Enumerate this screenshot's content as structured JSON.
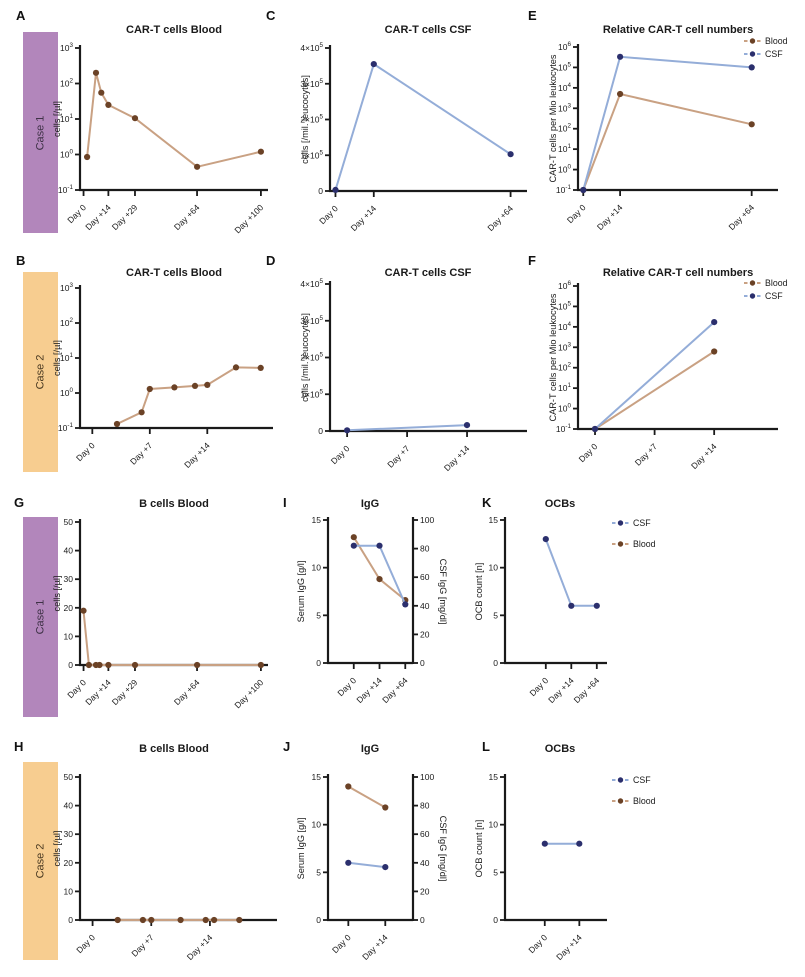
{
  "figure": {
    "rows": [
      {
        "case_label": "Case 1",
        "bar_color": "#b286bb",
        "text_color": "#3f3247"
      },
      {
        "case_label": "Case 2",
        "bar_color": "#f7cd90",
        "text_color": "#4c3b22"
      },
      {
        "case_label": "Case 1",
        "bar_color": "#b286bb",
        "text_color": "#3f3247"
      },
      {
        "case_label": "Case 2",
        "bar_color": "#f7cd90",
        "text_color": "#4c3b22"
      }
    ]
  },
  "colors": {
    "axis": "#1a1a1a",
    "blood": {
      "dot": "#6b4226",
      "line": "#c9a183"
    },
    "csf": {
      "dot": "#2b2f6d",
      "line": "#94add8"
    }
  },
  "chart_data": [
    {
      "letter": "A",
      "title": "CAR-T cells Blood",
      "type": "line",
      "ylabel": "cells [/µl]",
      "yscale": "log",
      "ylim": [
        0.1,
        1000
      ],
      "yticks": [
        {
          "v": 0.1,
          "label": "10^-1"
        },
        {
          "v": 1,
          "label": "10^0"
        },
        {
          "v": 10,
          "label": "10^1"
        },
        {
          "v": 100,
          "label": "10^2"
        },
        {
          "v": 1000,
          "label": "10^3"
        }
      ],
      "xlim": [
        -2,
        104
      ],
      "xticks": [
        {
          "v": 0,
          "label": "Day 0"
        },
        {
          "v": 14,
          "label": "Day +14"
        },
        {
          "v": 29,
          "label": "Day +29"
        },
        {
          "v": 64,
          "label": "Day +64"
        },
        {
          "v": 100,
          "label": "Day +100"
        }
      ],
      "series": [
        {
          "name": "Blood",
          "color": "blood",
          "axis": "y",
          "points": [
            [
              2,
              0.85
            ],
            [
              7,
              200
            ],
            [
              10,
              55
            ],
            [
              14,
              25
            ],
            [
              29,
              10.5
            ],
            [
              64,
              0.45
            ],
            [
              100,
              1.2
            ]
          ]
        }
      ]
    },
    {
      "letter": "C",
      "title": "CAR-T cells CSF",
      "type": "line",
      "ylabel": "cells [/mil. leucocytes]",
      "yscale": "linear",
      "ylim": [
        0,
        400000
      ],
      "yticks": [
        {
          "v": 0,
          "label": "0"
        },
        {
          "v": 100000,
          "label": "1×10^5"
        },
        {
          "v": 200000,
          "label": "2×10^5"
        },
        {
          "v": 300000,
          "label": "3×10^5"
        },
        {
          "v": 400000,
          "label": "4×10^5"
        }
      ],
      "xlim": [
        -2,
        70
      ],
      "xticks": [
        {
          "v": 0,
          "label": "Day 0"
        },
        {
          "v": 14,
          "label": "Day +14"
        },
        {
          "v": 64,
          "label": "Day +64"
        }
      ],
      "series": [
        {
          "name": "CSF",
          "color": "csf",
          "axis": "y",
          "points": [
            [
              0,
              3000
            ],
            [
              14,
              355000
            ],
            [
              64,
              103000
            ]
          ]
        }
      ]
    },
    {
      "letter": "E",
      "title": "Relative CAR-T cell numbers",
      "type": "line",
      "ylabel": "CAR-T cells per Mio leukocytes",
      "yscale": "log",
      "ylim": [
        0.1,
        1000000
      ],
      "yticks": [
        {
          "v": 0.1,
          "label": "10^-1"
        },
        {
          "v": 1,
          "label": "10^0"
        },
        {
          "v": 10,
          "label": "10^1"
        },
        {
          "v": 100,
          "label": "10^2"
        },
        {
          "v": 1000,
          "label": "10^3"
        },
        {
          "v": 10000,
          "label": "10^4"
        },
        {
          "v": 100000,
          "label": "10^5"
        },
        {
          "v": 1000000,
          "label": "10^6"
        }
      ],
      "xlim": [
        -2,
        74
      ],
      "xticks": [
        {
          "v": 0,
          "label": "Day 0"
        },
        {
          "v": 14,
          "label": "Day +14"
        },
        {
          "v": 64,
          "label": "Day +64"
        }
      ],
      "series": [
        {
          "name": "Blood",
          "color": "blood",
          "axis": "y",
          "points": [
            [
              0,
              0.1
            ],
            [
              14,
              5000
            ],
            [
              64,
              165
            ]
          ]
        },
        {
          "name": "CSF",
          "color": "csf",
          "axis": "y",
          "points": [
            [
              0,
              0.1
            ],
            [
              14,
              330000
            ],
            [
              64,
              100000
            ]
          ]
        }
      ],
      "legend": {
        "entries": [
          {
            "label": "Blood",
            "color": "blood"
          },
          {
            "label": "CSF",
            "color": "csf"
          }
        ]
      }
    },
    {
      "letter": "B",
      "title": "CAR-T cells Blood",
      "type": "line",
      "ylabel": "cells [/µl]",
      "yscale": "log",
      "ylim": [
        0.1,
        1000
      ],
      "yticks": [
        {
          "v": 0.1,
          "label": "10^-1"
        },
        {
          "v": 1,
          "label": "10^0"
        },
        {
          "v": 10,
          "label": "10^1"
        },
        {
          "v": 100,
          "label": "10^2"
        },
        {
          "v": 1000,
          "label": "10^3"
        }
      ],
      "xlim": [
        -1.5,
        22
      ],
      "xticks": [
        {
          "v": 0,
          "label": "Day 0"
        },
        {
          "v": 7,
          "label": "Day +7"
        },
        {
          "v": 14,
          "label": "Day +14"
        }
      ],
      "series": [
        {
          "name": "Blood",
          "color": "blood",
          "axis": "y",
          "points": [
            [
              3,
              0.13
            ],
            [
              6,
              0.28
            ],
            [
              7,
              1.3
            ],
            [
              10,
              1.45
            ],
            [
              12.5,
              1.6
            ],
            [
              14,
              1.7
            ],
            [
              17.5,
              5.4
            ],
            [
              20.5,
              5.2
            ]
          ]
        }
      ]
    },
    {
      "letter": "D",
      "title": "CAR-T cells CSF",
      "type": "line",
      "ylabel": "cells [/mil. leucocytes]",
      "yscale": "linear",
      "ylim": [
        0,
        400000
      ],
      "yticks": [
        {
          "v": 0,
          "label": "0"
        },
        {
          "v": 100000,
          "label": "1×10^5"
        },
        {
          "v": 200000,
          "label": "2×10^5"
        },
        {
          "v": 300000,
          "label": "3×10^5"
        },
        {
          "v": 400000,
          "label": "4×10^5"
        }
      ],
      "xlim": [
        -2,
        21
      ],
      "xticks": [
        {
          "v": 0,
          "label": "Day 0"
        },
        {
          "v": 7,
          "label": "Day +7"
        },
        {
          "v": 14,
          "label": "Day +14"
        }
      ],
      "series": [
        {
          "name": "CSF",
          "color": "csf",
          "axis": "y",
          "points": [
            [
              0,
              2000
            ],
            [
              14,
              16000
            ]
          ]
        }
      ]
    },
    {
      "letter": "F",
      "title": "Relative CAR-T cell numbers",
      "type": "line",
      "ylabel": "CAR-T cells per Mio leukocytes",
      "yscale": "log",
      "ylim": [
        0.1,
        1000000
      ],
      "yticks": [
        {
          "v": 0.1,
          "label": "10^-1"
        },
        {
          "v": 1,
          "label": "10^0"
        },
        {
          "v": 10,
          "label": "10^1"
        },
        {
          "v": 100,
          "label": "10^2"
        },
        {
          "v": 1000,
          "label": "10^3"
        },
        {
          "v": 10000,
          "label": "10^4"
        },
        {
          "v": 100000,
          "label": "10^5"
        },
        {
          "v": 1000000,
          "label": "10^6"
        }
      ],
      "xlim": [
        -2,
        21.5
      ],
      "xticks": [
        {
          "v": 0,
          "label": "Day 0"
        },
        {
          "v": 7,
          "label": "Day +7"
        },
        {
          "v": 14,
          "label": "Day +14"
        }
      ],
      "series": [
        {
          "name": "Blood",
          "color": "blood",
          "axis": "y",
          "points": [
            [
              0,
              0.1
            ],
            [
              14,
              620
            ]
          ]
        },
        {
          "name": "CSF",
          "color": "csf",
          "axis": "y",
          "points": [
            [
              0,
              0.1
            ],
            [
              14,
              17000
            ]
          ]
        }
      ],
      "legend": {
        "entries": [
          {
            "label": "Blood",
            "color": "blood"
          },
          {
            "label": "CSF",
            "color": "csf"
          }
        ]
      }
    },
    {
      "letter": "G",
      "title": "B cells Blood",
      "type": "line",
      "ylabel": "cells [/µl]",
      "yscale": "linear",
      "ylim": [
        0,
        50
      ],
      "yticks": [
        {
          "v": 0,
          "label": "0"
        },
        {
          "v": 10,
          "label": "10"
        },
        {
          "v": 20,
          "label": "20"
        },
        {
          "v": 30,
          "label": "30"
        },
        {
          "v": 40,
          "label": "40"
        },
        {
          "v": 50,
          "label": "50"
        }
      ],
      "xlim": [
        -2,
        104
      ],
      "xticks": [
        {
          "v": 0,
          "label": "Day 0"
        },
        {
          "v": 14,
          "label": "Day +14"
        },
        {
          "v": 29,
          "label": "Day +29"
        },
        {
          "v": 64,
          "label": "Day +64"
        },
        {
          "v": 100,
          "label": "Day +100"
        }
      ],
      "series": [
        {
          "name": "Blood",
          "color": "blood",
          "axis": "y",
          "points": [
            [
              0,
              19
            ],
            [
              3,
              0
            ],
            [
              7,
              0
            ],
            [
              9,
              0
            ],
            [
              14,
              0
            ],
            [
              29,
              0
            ],
            [
              64,
              0
            ],
            [
              100,
              0
            ]
          ]
        }
      ]
    },
    {
      "letter": "I",
      "title": "IgG",
      "type": "line",
      "ylabel": "Serum IgG [g/l]",
      "yscale": "linear",
      "ylim": [
        0,
        15
      ],
      "yticks": [
        {
          "v": 0,
          "label": "0"
        },
        {
          "v": 5,
          "label": "5"
        },
        {
          "v": 10,
          "label": "10"
        },
        {
          "v": 15,
          "label": "15"
        }
      ],
      "y2label": "CSF IgG [mg/dl]",
      "y2lim": [
        0,
        100
      ],
      "y2ticks": [
        {
          "v": 0,
          "label": "0"
        },
        {
          "v": 20,
          "label": "20"
        },
        {
          "v": 40,
          "label": "40"
        },
        {
          "v": 60,
          "label": "60"
        },
        {
          "v": 80,
          "label": "80"
        },
        {
          "v": 100,
          "label": "100"
        }
      ],
      "xlim": [
        -1,
        2.3
      ],
      "xticks": [
        {
          "v": 0,
          "label": "Day 0"
        },
        {
          "v": 1,
          "label": "Day +14"
        },
        {
          "v": 2,
          "label": "Day +64"
        }
      ],
      "series": [
        {
          "name": "Serum (Blood)",
          "color": "blood",
          "axis": "y",
          "points": [
            [
              0,
              13.2
            ],
            [
              1,
              8.8
            ],
            [
              2,
              6.6
            ]
          ]
        },
        {
          "name": "CSF",
          "color": "csf",
          "axis": "y2",
          "points": [
            [
              0,
              82
            ],
            [
              1,
              82
            ],
            [
              2,
              41
            ]
          ]
        }
      ]
    },
    {
      "letter": "K",
      "title": "OCBs",
      "type": "line",
      "ylabel": "OCB count [n]",
      "yscale": "linear",
      "ylim": [
        0,
        15
      ],
      "yticks": [
        {
          "v": 0,
          "label": "0"
        },
        {
          "v": 5,
          "label": "5"
        },
        {
          "v": 10,
          "label": "10"
        },
        {
          "v": 15,
          "label": "15"
        }
      ],
      "xlim": [
        -1.6,
        2.4
      ],
      "xticks": [
        {
          "v": 0,
          "label": "Day 0"
        },
        {
          "v": 1,
          "label": "Day +14"
        },
        {
          "v": 2,
          "label": "Day +64"
        }
      ],
      "series": [
        {
          "name": "CSF",
          "color": "csf",
          "axis": "y",
          "points": [
            [
              0,
              13
            ],
            [
              1,
              6
            ],
            [
              2,
              6
            ]
          ]
        }
      ],
      "legend": {
        "entries": [
          {
            "label": "CSF",
            "color": "csf"
          },
          {
            "label": "Blood",
            "color": "blood"
          }
        ]
      }
    },
    {
      "letter": "H",
      "title": "B cells Blood",
      "type": "line",
      "ylabel": "cells [/µl]",
      "yscale": "linear",
      "ylim": [
        0,
        50
      ],
      "yticks": [
        {
          "v": 0,
          "label": "0"
        },
        {
          "v": 10,
          "label": "10"
        },
        {
          "v": 20,
          "label": "20"
        },
        {
          "v": 30,
          "label": "30"
        },
        {
          "v": 40,
          "label": "40"
        },
        {
          "v": 50,
          "label": "50"
        }
      ],
      "xlim": [
        -1.5,
        22
      ],
      "xticks": [
        {
          "v": 0,
          "label": "Day 0"
        },
        {
          "v": 7,
          "label": "Day +7"
        },
        {
          "v": 14,
          "label": "Day +14"
        }
      ],
      "series": [
        {
          "name": "Blood",
          "color": "blood",
          "axis": "y",
          "points": [
            [
              3,
              0
            ],
            [
              6,
              0
            ],
            [
              7,
              0
            ],
            [
              10.5,
              0
            ],
            [
              13.5,
              0
            ],
            [
              14.5,
              0
            ],
            [
              17.5,
              0
            ]
          ]
        }
      ]
    },
    {
      "letter": "J",
      "title": "IgG",
      "type": "line",
      "ylabel": "Serum IgG [g/l]",
      "yscale": "linear",
      "ylim": [
        0,
        15
      ],
      "yticks": [
        {
          "v": 0,
          "label": "0"
        },
        {
          "v": 5,
          "label": "5"
        },
        {
          "v": 10,
          "label": "10"
        },
        {
          "v": 15,
          "label": "15"
        }
      ],
      "y2label": "CSF IgG [mg/dl]",
      "y2lim": [
        0,
        100
      ],
      "y2ticks": [
        {
          "v": 0,
          "label": "0"
        },
        {
          "v": 20,
          "label": "20"
        },
        {
          "v": 40,
          "label": "40"
        },
        {
          "v": 60,
          "label": "60"
        },
        {
          "v": 80,
          "label": "80"
        },
        {
          "v": 100,
          "label": "100"
        }
      ],
      "xlim": [
        -0.55,
        1.75
      ],
      "xticks": [
        {
          "v": 0,
          "label": "Day 0"
        },
        {
          "v": 1,
          "label": "Day +14"
        }
      ],
      "series": [
        {
          "name": "Serum (Blood)",
          "color": "blood",
          "axis": "y",
          "points": [
            [
              0,
              14
            ],
            [
              1,
              11.8
            ]
          ]
        },
        {
          "name": "CSF",
          "color": "csf",
          "axis": "y2",
          "points": [
            [
              0,
              40
            ],
            [
              1,
              37
            ]
          ]
        }
      ]
    },
    {
      "letter": "L",
      "title": "OCBs",
      "type": "line",
      "ylabel": "OCB count [n]",
      "yscale": "linear",
      "ylim": [
        0,
        15
      ],
      "yticks": [
        {
          "v": 0,
          "label": "0"
        },
        {
          "v": 5,
          "label": "5"
        },
        {
          "v": 10,
          "label": "10"
        },
        {
          "v": 15,
          "label": "15"
        }
      ],
      "xlim": [
        -1.15,
        1.8
      ],
      "xticks": [
        {
          "v": 0,
          "label": "Day 0"
        },
        {
          "v": 1,
          "label": "Day +14"
        }
      ],
      "series": [
        {
          "name": "CSF",
          "color": "csf",
          "axis": "y",
          "points": [
            [
              0,
              8
            ],
            [
              1,
              8
            ]
          ]
        }
      ],
      "legend": {
        "entries": [
          {
            "label": "CSF",
            "color": "csf"
          },
          {
            "label": "Blood",
            "color": "blood"
          }
        ]
      }
    }
  ]
}
